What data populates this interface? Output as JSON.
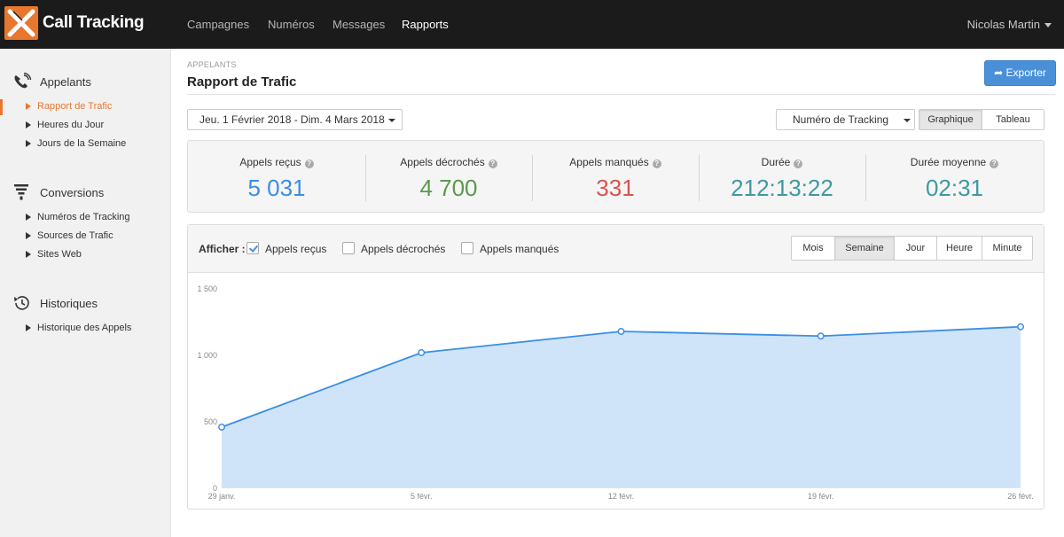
{
  "header": {
    "brand": "Call Tracking",
    "nav": [
      {
        "label": "Campagnes",
        "active": false
      },
      {
        "label": "Numéros",
        "active": false
      },
      {
        "label": "Messages",
        "active": false
      },
      {
        "label": "Rapports",
        "active": true
      }
    ],
    "user": "Nicolas Martin"
  },
  "sidebar": {
    "sections": [
      {
        "title": "Appelants",
        "icon": "phone-icon",
        "items": [
          "Rapport de Trafic",
          "Heures du Jour",
          "Jours de la Semaine"
        ]
      },
      {
        "title": "Conversions",
        "icon": "funnel-icon",
        "items": [
          "Numéros de Tracking",
          "Sources de Trafic",
          "Sites Web"
        ]
      },
      {
        "title": "Historiques",
        "icon": "history-icon",
        "items": [
          "Historique des Appels"
        ]
      }
    ],
    "active_item": "Rapport de Trafic"
  },
  "page": {
    "breadcrumb": "APPELANTS",
    "title": "Rapport de Trafic",
    "export_label": "Exporter"
  },
  "filters": {
    "date_range": "Jeu. 1 Février 2018 - Dim. 4 Mars 2018",
    "tracking_select": "Numéro de Tracking",
    "view_graph": "Graphique",
    "view_table": "Tableau",
    "active_view": "Graphique"
  },
  "stats": [
    {
      "label": "Appels reçus",
      "value": "5 031",
      "color": "#3a8ee6"
    },
    {
      "label": "Appels décrochés",
      "value": "4 700",
      "color": "#5a9a4a"
    },
    {
      "label": "Appels manqués",
      "value": "331",
      "color": "#d9534f"
    },
    {
      "label": "Durée",
      "value": "212:13:22",
      "color": "#3e9aa0"
    },
    {
      "label": "Durée moyenne",
      "value": "02:31",
      "color": "#3e9aa0"
    }
  ],
  "chart_controls": {
    "show_label": "Afficher :",
    "checkboxes": [
      {
        "label": "Appels reçus",
        "checked": true
      },
      {
        "label": "Appels décrochés",
        "checked": false
      },
      {
        "label": "Appels manqués",
        "checked": false
      }
    ],
    "periods": [
      "Mois",
      "Semaine",
      "Jour",
      "Heure",
      "Minute"
    ],
    "active_period": "Semaine"
  },
  "chart_data": {
    "type": "area",
    "categories": [
      "29 janv.",
      "5 févr.",
      "12 févr.",
      "19 févr.",
      "26 févr."
    ],
    "series": [
      {
        "name": "Appels reçus",
        "values": [
          460,
          1020,
          1180,
          1145,
          1215
        ],
        "color": "#3a8ee6"
      }
    ],
    "y_ticks": [
      "0",
      "500",
      "1 000",
      "1 500"
    ],
    "ylim": [
      0,
      1500
    ],
    "grid": false,
    "legend": "none"
  }
}
